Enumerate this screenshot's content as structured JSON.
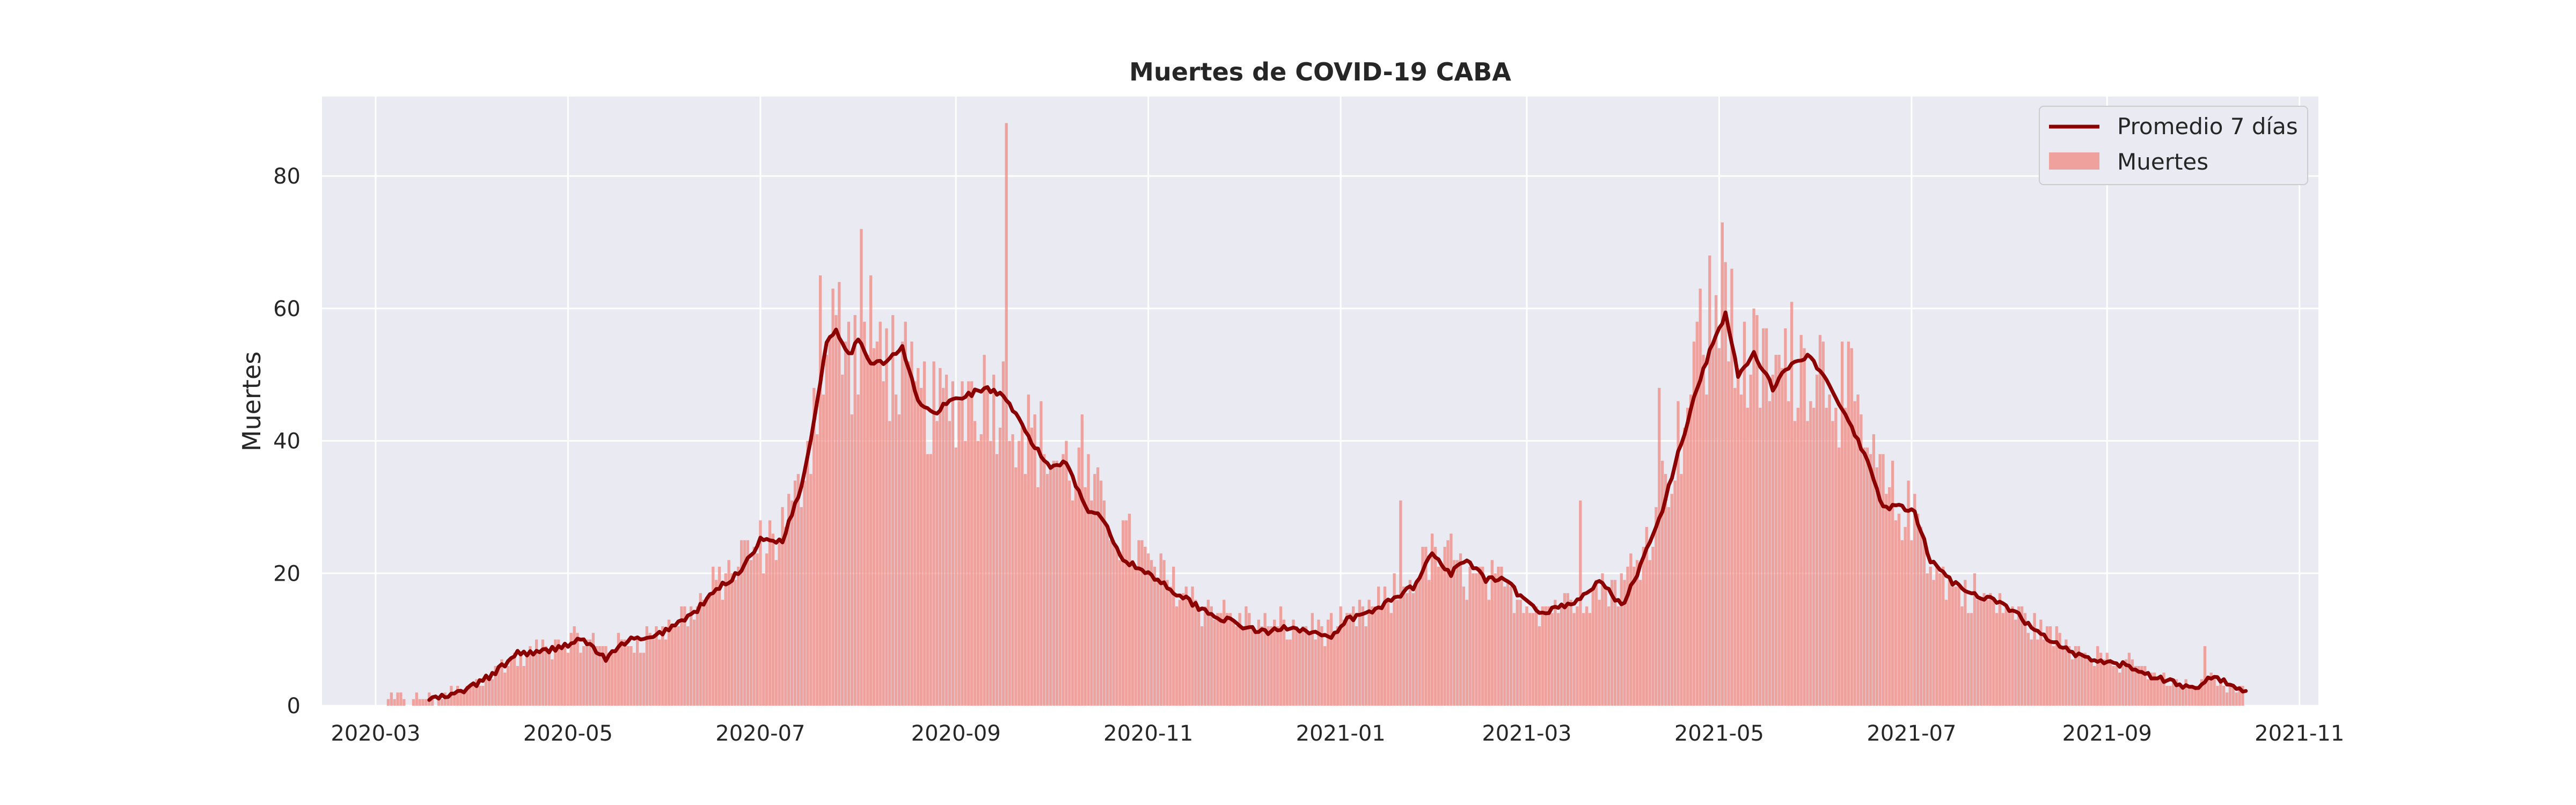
{
  "chart_data": {
    "type": "bar",
    "title": "Muertes de COVID-19 CABA",
    "xlabel": "",
    "ylabel": "Muertes",
    "ylim": [
      0,
      92
    ],
    "xlim": [
      "2020-02-13",
      "2021-11-07"
    ],
    "grid": true,
    "legend_position": "top-right",
    "x_ticks": [
      "2020-03",
      "2020-05",
      "2020-07",
      "2020-09",
      "2020-11",
      "2021-01",
      "2021-03",
      "2021-05",
      "2021-07",
      "2021-09",
      "2021-11"
    ],
    "y_ticks": [
      0,
      20,
      40,
      60,
      80
    ],
    "start_date": "2020-03-05",
    "colors": {
      "bars": "#f08880",
      "line": "#8b0000",
      "plot_bg": "#eaeaf2",
      "grid": "#ffffff"
    },
    "series": [
      {
        "name": "Muertes",
        "type": "bar",
        "key_points": [
          [
            "2020-03-05",
            1
          ],
          [
            "2020-03-20",
            1
          ],
          [
            "2020-04-01",
            3
          ],
          [
            "2020-04-10",
            6
          ],
          [
            "2020-04-20",
            8
          ],
          [
            "2020-05-01",
            10
          ],
          [
            "2020-05-12",
            9
          ],
          [
            "2020-05-25",
            10
          ],
          [
            "2020-06-05",
            13
          ],
          [
            "2020-06-15",
            17
          ],
          [
            "2020-06-25",
            22
          ],
          [
            "2020-07-05",
            25
          ],
          [
            "2020-07-12",
            30
          ],
          [
            "2020-07-18",
            45
          ],
          [
            "2020-07-24",
            57
          ],
          [
            "2020-07-30",
            52
          ],
          [
            "2020-08-05",
            55
          ],
          [
            "2020-08-12",
            52
          ],
          [
            "2020-08-18",
            47
          ],
          [
            "2020-08-25",
            44
          ],
          [
            "2020-09-01",
            46
          ],
          [
            "2020-09-08",
            48
          ],
          [
            "2020-09-14",
            47
          ],
          [
            "2020-09-20",
            44
          ],
          [
            "2020-09-27",
            40
          ],
          [
            "2020-10-03",
            37
          ],
          [
            "2020-10-10",
            35
          ],
          [
            "2020-10-17",
            30
          ],
          [
            "2020-10-24",
            26
          ],
          [
            "2020-11-01",
            21
          ],
          [
            "2020-11-10",
            18
          ],
          [
            "2020-11-20",
            15
          ],
          [
            "2020-12-01",
            13
          ],
          [
            "2020-12-10",
            12
          ],
          [
            "2020-12-20",
            12
          ],
          [
            "2020-12-31",
            12
          ],
          [
            "2021-01-10",
            14
          ],
          [
            "2021-01-20",
            17
          ],
          [
            "2021-01-28",
            22
          ],
          [
            "2021-02-05",
            22
          ],
          [
            "2021-02-12",
            19
          ],
          [
            "2021-02-20",
            18
          ],
          [
            "2021-02-28",
            16
          ],
          [
            "2021-03-08",
            15
          ],
          [
            "2021-03-15",
            16
          ],
          [
            "2021-03-22",
            18
          ],
          [
            "2021-04-01",
            18
          ],
          [
            "2021-04-08",
            26
          ],
          [
            "2021-04-15",
            35
          ],
          [
            "2021-04-22",
            48
          ],
          [
            "2021-05-01",
            59
          ],
          [
            "2021-05-08",
            52
          ],
          [
            "2021-05-15",
            51
          ],
          [
            "2021-05-22",
            50
          ],
          [
            "2021-05-29",
            53
          ],
          [
            "2021-06-05",
            51
          ],
          [
            "2021-06-12",
            45
          ],
          [
            "2021-06-19",
            36
          ],
          [
            "2021-06-26",
            30
          ],
          [
            "2021-07-03",
            28
          ],
          [
            "2021-07-10",
            19
          ],
          [
            "2021-07-18",
            17
          ],
          [
            "2021-07-26",
            16
          ],
          [
            "2021-08-03",
            14
          ],
          [
            "2021-08-12",
            11
          ],
          [
            "2021-08-22",
            9
          ],
          [
            "2021-09-01",
            7
          ],
          [
            "2021-09-10",
            6
          ],
          [
            "2021-09-20",
            4
          ],
          [
            "2021-09-28",
            3
          ],
          [
            "2021-10-05",
            4
          ],
          [
            "2021-10-14",
            2
          ]
        ],
        "spikes": [
          [
            "2020-07-20",
            65
          ],
          [
            "2020-07-26",
            64
          ],
          [
            "2020-08-02",
            72
          ],
          [
            "2020-08-10",
            57
          ],
          [
            "2020-09-17",
            88
          ],
          [
            "2020-10-11",
            44
          ],
          [
            "2021-01-20",
            31
          ],
          [
            "2021-03-18",
            31
          ],
          [
            "2021-04-12",
            48
          ],
          [
            "2021-04-25",
            63
          ],
          [
            "2021-04-28",
            68
          ],
          [
            "2021-05-02",
            73
          ],
          [
            "2021-05-05",
            66
          ],
          [
            "2021-05-24",
            61
          ],
          [
            "2021-10-02",
            9
          ]
        ]
      },
      {
        "name": "Promedio 7 días",
        "type": "line",
        "key_points": [
          [
            "2020-03-18",
            1
          ],
          [
            "2020-03-25",
            1.5
          ],
          [
            "2020-04-01",
            3
          ],
          [
            "2020-04-08",
            5
          ],
          [
            "2020-04-15",
            8
          ],
          [
            "2020-04-22",
            8
          ],
          [
            "2020-04-29",
            9
          ],
          [
            "2020-05-06",
            10
          ],
          [
            "2020-05-13",
            7
          ],
          [
            "2020-05-20",
            10
          ],
          [
            "2020-05-27",
            10
          ],
          [
            "2020-06-03",
            12
          ],
          [
            "2020-06-10",
            14
          ],
          [
            "2020-06-17",
            17.5
          ],
          [
            "2020-06-24",
            20
          ],
          [
            "2020-07-01",
            25
          ],
          [
            "2020-07-08",
            25
          ],
          [
            "2020-07-14",
            33
          ],
          [
            "2020-07-18",
            43
          ],
          [
            "2020-07-22",
            55
          ],
          [
            "2020-07-25",
            57
          ],
          [
            "2020-07-29",
            53
          ],
          [
            "2020-08-01",
            55
          ],
          [
            "2020-08-05",
            52
          ],
          [
            "2020-08-10",
            52
          ],
          [
            "2020-08-15",
            54
          ],
          [
            "2020-08-20",
            46
          ],
          [
            "2020-08-25",
            44
          ],
          [
            "2020-08-30",
            46
          ],
          [
            "2020-09-05",
            47
          ],
          [
            "2020-09-10",
            48
          ],
          [
            "2020-09-15",
            47
          ],
          [
            "2020-09-20",
            44
          ],
          [
            "2020-09-26",
            39
          ],
          [
            "2020-10-01",
            36
          ],
          [
            "2020-10-06",
            37
          ],
          [
            "2020-10-12",
            30
          ],
          [
            "2020-10-18",
            28
          ],
          [
            "2020-10-24",
            22
          ],
          [
            "2020-11-01",
            20
          ],
          [
            "2020-11-10",
            17
          ],
          [
            "2020-11-20",
            14
          ],
          [
            "2020-12-01",
            12
          ],
          [
            "2020-12-08",
            11
          ],
          [
            "2020-12-16",
            12
          ],
          [
            "2020-12-24",
            11
          ],
          [
            "2020-12-29",
            10
          ],
          [
            "2021-01-03",
            13
          ],
          [
            "2021-01-10",
            14
          ],
          [
            "2021-01-17",
            16
          ],
          [
            "2021-01-24",
            18
          ],
          [
            "2021-01-30",
            23
          ],
          [
            "2021-02-05",
            20
          ],
          [
            "2021-02-10",
            22
          ],
          [
            "2021-02-16",
            19
          ],
          [
            "2021-02-22",
            19
          ],
          [
            "2021-02-28",
            16
          ],
          [
            "2021-03-05",
            14
          ],
          [
            "2021-03-12",
            15
          ],
          [
            "2021-03-18",
            16
          ],
          [
            "2021-03-24",
            19
          ],
          [
            "2021-03-31",
            15
          ],
          [
            "2021-04-05",
            20
          ],
          [
            "2021-04-12",
            28
          ],
          [
            "2021-04-18",
            38
          ],
          [
            "2021-04-24",
            48
          ],
          [
            "2021-04-29",
            55
          ],
          [
            "2021-05-03",
            59
          ],
          [
            "2021-05-07",
            50
          ],
          [
            "2021-05-12",
            53
          ],
          [
            "2021-05-18",
            48
          ],
          [
            "2021-05-24",
            52
          ],
          [
            "2021-05-30",
            53
          ],
          [
            "2021-06-05",
            48
          ],
          [
            "2021-06-10",
            44
          ],
          [
            "2021-06-16",
            38
          ],
          [
            "2021-06-22",
            30
          ],
          [
            "2021-06-28",
            30
          ],
          [
            "2021-07-02",
            29
          ],
          [
            "2021-07-07",
            22
          ],
          [
            "2021-07-13",
            19
          ],
          [
            "2021-07-20",
            17
          ],
          [
            "2021-07-27",
            16
          ],
          [
            "2021-08-03",
            14
          ],
          [
            "2021-08-10",
            11
          ],
          [
            "2021-08-17",
            9
          ],
          [
            "2021-08-25",
            7
          ],
          [
            "2021-09-01",
            6.5
          ],
          [
            "2021-09-08",
            6
          ],
          [
            "2021-09-15",
            4.5
          ],
          [
            "2021-09-22",
            3.5
          ],
          [
            "2021-09-28",
            2.5
          ],
          [
            "2021-10-03",
            4
          ],
          [
            "2021-10-08",
            4
          ],
          [
            "2021-10-12",
            2.5
          ],
          [
            "2021-10-15",
            2.5
          ]
        ]
      }
    ]
  }
}
